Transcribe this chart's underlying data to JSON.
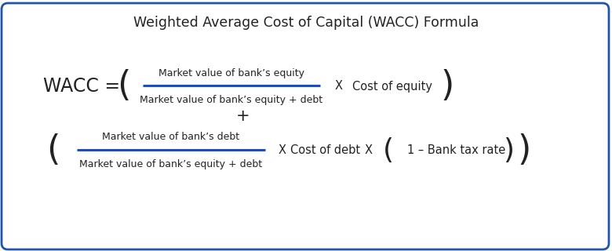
{
  "title": "Weighted Average Cost of Capital (WACC) Formula",
  "title_fontsize": 12.5,
  "background_color": "#ffffff",
  "border_color": "#2255aa",
  "wacc_label": "WACC =",
  "wacc_fontsize": 17,
  "fraction1_numerator": "Market value of bank’s equity",
  "fraction1_denominator": "Market value of bank’s equity + debt",
  "multiply1": "X",
  "term1": "Cost of equity",
  "plus_sign": "+",
  "fraction2_numerator": "Market value of bank’s debt",
  "fraction2_denominator": "Market value of bank’s equity + debt",
  "multiply2": "X",
  "term2": "Cost of debt",
  "multiply3": "X",
  "inner_paren": "1 – Bank tax rate",
  "line_color": "#1a4fc4",
  "text_color": "#222222",
  "small_fontsize": 9,
  "medium_fontsize": 10.5,
  "paren_fontsize": 32,
  "inner_paren_fontsize": 26
}
